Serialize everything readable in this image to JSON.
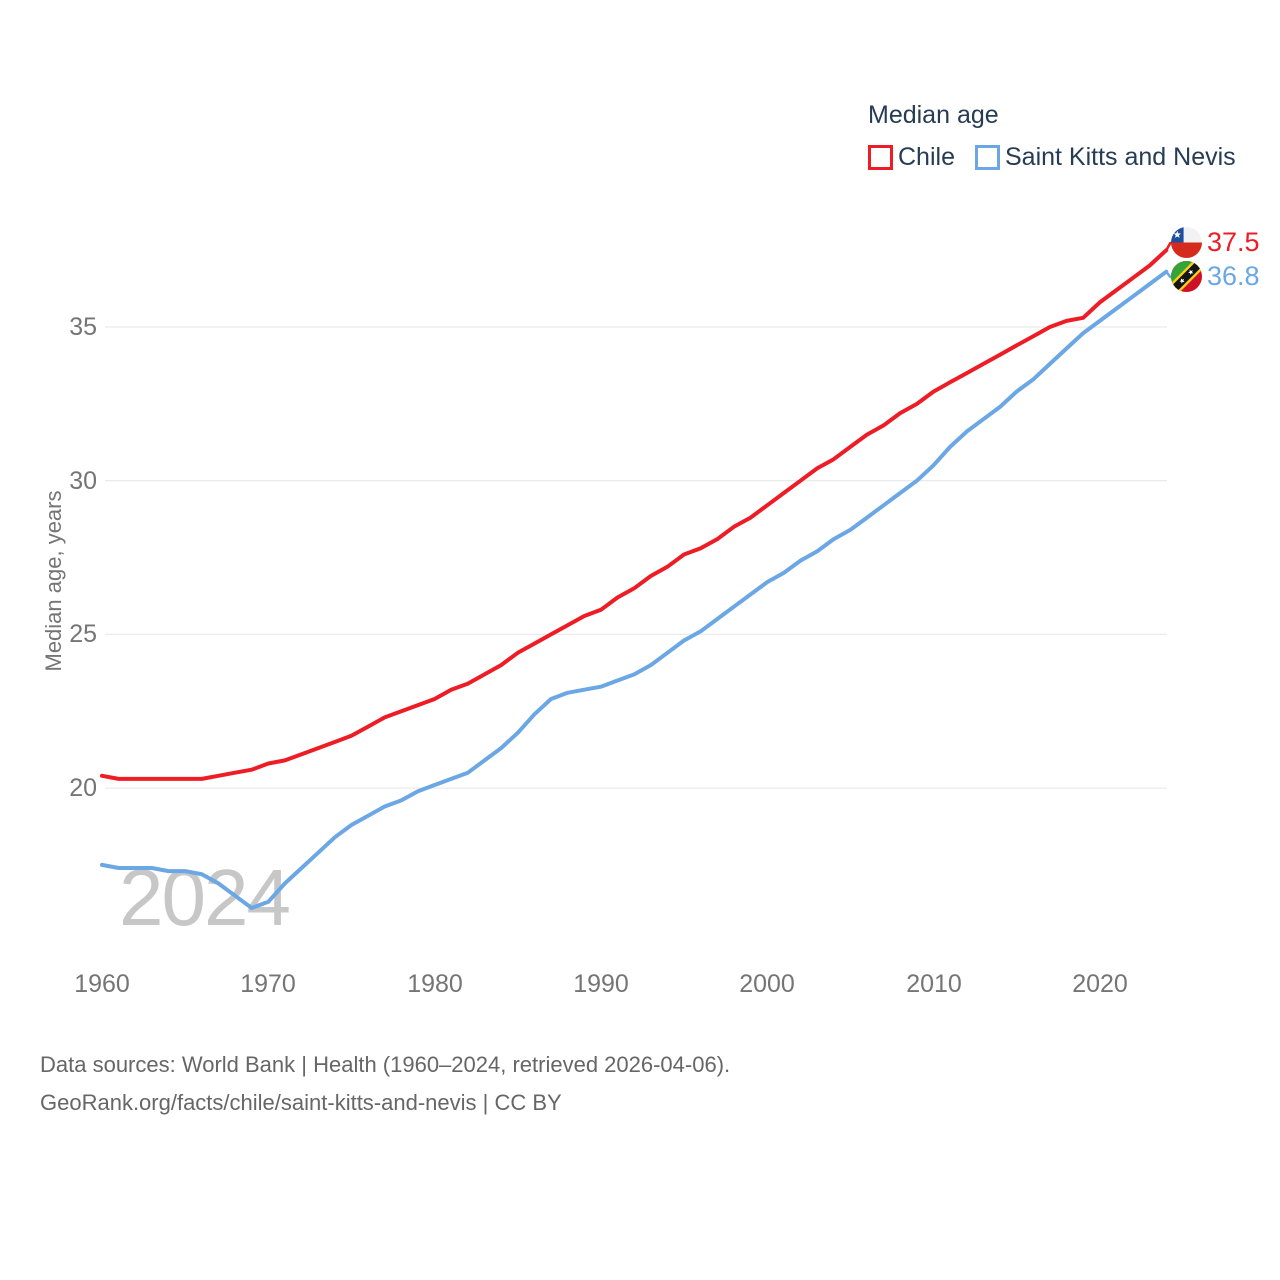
{
  "legend": {
    "title": "Median age",
    "items": [
      {
        "label": "Chile",
        "color": "#ee1c25"
      },
      {
        "label": "Saint Kitts and Nevis",
        "color": "#6aa7e4"
      }
    ]
  },
  "end_labels": [
    {
      "country": "Chile",
      "value": "37.5",
      "color": "#ee1c25",
      "flag_icon": "chile-flag"
    },
    {
      "country": "Saint Kitts and Nevis",
      "value": "36.8",
      "color": "#6aa7e4",
      "flag_icon": "saint-kitts-and-nevis-flag"
    }
  ],
  "watermark": "2024",
  "chart_data": {
    "type": "line",
    "title": "Median age",
    "xlabel": "",
    "ylabel": "Median age, years",
    "xlim": [
      1960,
      2024
    ],
    "ylim": [
      15.5,
      38.5
    ],
    "yticks": [
      20,
      25,
      30,
      35
    ],
    "xticks": [
      1960,
      1970,
      1980,
      1990,
      2000,
      2010,
      2020
    ],
    "grid": "horizontal",
    "legend_position": "top-right",
    "x": [
      1960,
      1961,
      1962,
      1963,
      1964,
      1965,
      1966,
      1967,
      1968,
      1969,
      1970,
      1971,
      1972,
      1973,
      1974,
      1975,
      1976,
      1977,
      1978,
      1979,
      1980,
      1981,
      1982,
      1983,
      1984,
      1985,
      1986,
      1987,
      1988,
      1989,
      1990,
      1991,
      1992,
      1993,
      1994,
      1995,
      1996,
      1997,
      1998,
      1999,
      2000,
      2001,
      2002,
      2003,
      2004,
      2005,
      2006,
      2007,
      2008,
      2009,
      2010,
      2011,
      2012,
      2013,
      2014,
      2015,
      2016,
      2017,
      2018,
      2019,
      2020,
      2021,
      2022,
      2023,
      2024
    ],
    "series": [
      {
        "name": "Chile",
        "color": "#ee1c25",
        "end_value": 37.5,
        "values": [
          20.4,
          20.3,
          20.3,
          20.3,
          20.3,
          20.3,
          20.3,
          20.4,
          20.5,
          20.6,
          20.8,
          20.9,
          21.1,
          21.3,
          21.5,
          21.7,
          22.0,
          22.3,
          22.5,
          22.7,
          22.9,
          23.2,
          23.4,
          23.7,
          24.0,
          24.4,
          24.7,
          25.0,
          25.3,
          25.6,
          25.8,
          26.2,
          26.5,
          26.9,
          27.2,
          27.6,
          27.8,
          28.1,
          28.5,
          28.8,
          29.2,
          29.6,
          30.0,
          30.4,
          30.7,
          31.1,
          31.5,
          31.8,
          32.2,
          32.5,
          32.9,
          33.2,
          33.5,
          33.8,
          34.1,
          34.4,
          34.7,
          35.0,
          35.2,
          35.3,
          35.8,
          36.2,
          36.6,
          37.0,
          37.5
        ]
      },
      {
        "name": "Saint Kitts and Nevis",
        "color": "#6aa7e4",
        "end_value": 36.8,
        "values": [
          17.5,
          17.4,
          17.4,
          17.4,
          17.3,
          17.3,
          17.2,
          16.9,
          16.5,
          16.1,
          16.3,
          16.9,
          17.4,
          17.9,
          18.4,
          18.8,
          19.1,
          19.4,
          19.6,
          19.9,
          20.1,
          20.3,
          20.5,
          20.9,
          21.3,
          21.8,
          22.4,
          22.9,
          23.1,
          23.2,
          23.3,
          23.5,
          23.7,
          24.0,
          24.4,
          24.8,
          25.1,
          25.5,
          25.9,
          26.3,
          26.7,
          27.0,
          27.4,
          27.7,
          28.1,
          28.4,
          28.8,
          29.2,
          29.6,
          30.0,
          30.5,
          31.1,
          31.6,
          32.0,
          32.4,
          32.9,
          33.3,
          33.8,
          34.3,
          34.8,
          35.2,
          35.6,
          36.0,
          36.4,
          36.8
        ]
      }
    ]
  },
  "footer": {
    "line1": "Data sources: World Bank | Health (1960–2024, retrieved 2026-04-06).",
    "line2": "GeoRank.org/facts/chile/saint-kitts-and-nevis | CC BY"
  }
}
